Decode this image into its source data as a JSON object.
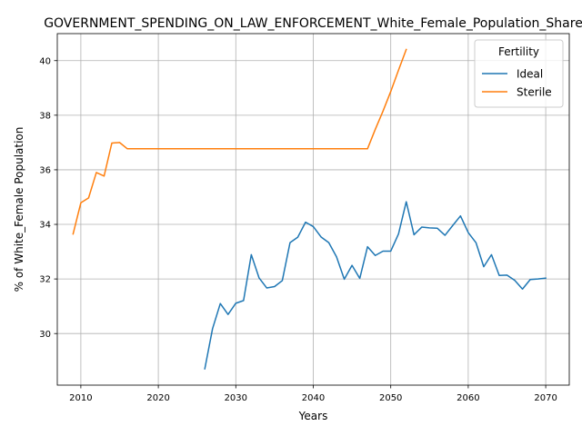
{
  "chart_data": {
    "type": "line",
    "title": "GOVERNMENT_SPENDING_ON_LAW_ENFORCEMENT_White_Female_Population_Share",
    "xlabel": "Years",
    "ylabel": "% of White_Female Population",
    "xlim": [
      2006.96,
      2073.04
    ],
    "ylim": [
      28.11,
      40.99
    ],
    "xticks": [
      2010,
      2020,
      2030,
      2040,
      2050,
      2060,
      2070
    ],
    "yticks": [
      30,
      32,
      34,
      36,
      38,
      40
    ],
    "grid": true,
    "legend": {
      "title": "Fertility",
      "placement": "top-right"
    },
    "series": [
      {
        "name": "Ideal",
        "color": "#1f77b4",
        "x": [
          2026,
          2027,
          2028,
          2029,
          2030,
          2031,
          2032,
          2033,
          2034,
          2035,
          2036,
          2037,
          2038,
          2039,
          2040,
          2041,
          2042,
          2043,
          2044,
          2045,
          2046,
          2047,
          2048,
          2049,
          2050,
          2051,
          2052,
          2053,
          2054,
          2055,
          2056,
          2057,
          2058,
          2059,
          2060,
          2061,
          2062,
          2063,
          2064,
          2065,
          2066,
          2067,
          2068,
          2069,
          2070
        ],
        "y": [
          28.71,
          30.18,
          31.1,
          30.7,
          31.11,
          31.21,
          32.89,
          32.04,
          31.67,
          31.72,
          31.94,
          33.33,
          33.53,
          34.08,
          33.92,
          33.54,
          33.33,
          32.81,
          31.99,
          32.5,
          32.02,
          33.18,
          32.86,
          33.02,
          33.02,
          33.65,
          34.83,
          33.62,
          33.9,
          33.87,
          33.86,
          33.6,
          33.96,
          34.31,
          33.7,
          33.33,
          32.45,
          32.89,
          32.13,
          32.14,
          31.95,
          31.63,
          31.98,
          32.0,
          32.03
        ]
      },
      {
        "name": "Sterile",
        "color": "#ff7f0e",
        "x": [
          2009,
          2010,
          2011,
          2012,
          2013,
          2014,
          2015,
          2016,
          2017,
          2018,
          2019,
          2020,
          2021,
          2022,
          2023,
          2024,
          2025,
          2026,
          2027,
          2028,
          2029,
          2030,
          2031,
          2032,
          2033,
          2034,
          2035,
          2036,
          2037,
          2038,
          2039,
          2040,
          2041,
          2042,
          2043,
          2044,
          2045,
          2046,
          2047,
          2048,
          2049,
          2050,
          2051,
          2052
        ],
        "y": [
          33.65,
          34.79,
          34.97,
          35.9,
          35.77,
          36.98,
          37.0,
          36.77,
          36.77,
          36.77,
          36.77,
          36.77,
          36.77,
          36.77,
          36.77,
          36.77,
          36.77,
          36.77,
          36.77,
          36.77,
          36.77,
          36.77,
          36.77,
          36.77,
          36.77,
          36.77,
          36.77,
          36.77,
          36.77,
          36.77,
          36.77,
          36.77,
          36.77,
          36.77,
          36.77,
          36.77,
          36.77,
          36.77,
          36.77,
          37.48,
          38.15,
          38.87,
          39.65,
          40.41
        ]
      }
    ]
  }
}
